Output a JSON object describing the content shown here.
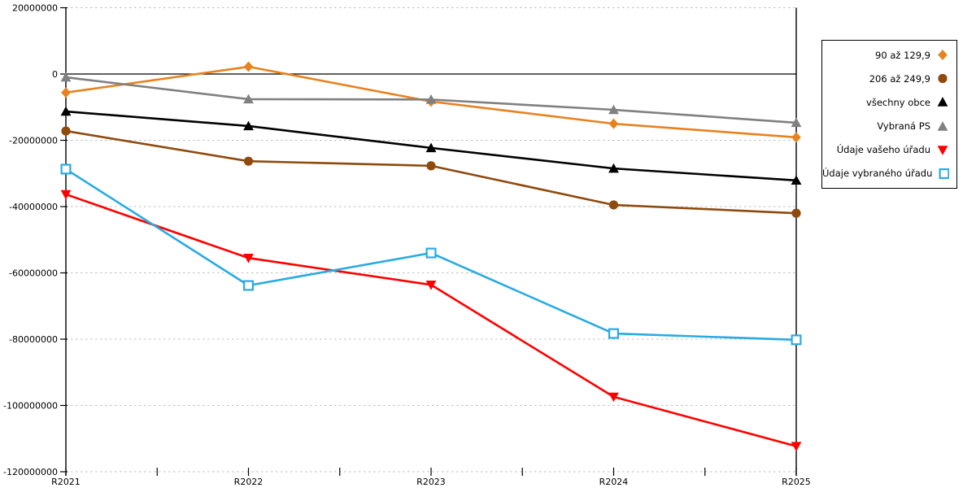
{
  "chart": {
    "background_color": "#ffffff",
    "axis_color": "#000000",
    "gridline_color": "#bfbfbf",
    "legend_border_color": "#000000"
  },
  "chart_data": {
    "type": "line",
    "categories": [
      "R2021",
      "R2022",
      "R2023",
      "R2024",
      "R2025"
    ],
    "series": [
      {
        "name": "90 až 129,9",
        "marker": "diamond",
        "color": "#E8821E",
        "values": [
          -5600000,
          2200000,
          -8300000,
          -15000000,
          -19100000
        ]
      },
      {
        "name": "206 až 249,9",
        "marker": "circle",
        "color": "#8F4A0D",
        "values": [
          -17200000,
          -26300000,
          -27700000,
          -39500000,
          -42000000
        ]
      },
      {
        "name": "všechny obce",
        "marker": "triangle-up",
        "color": "#000000",
        "values": [
          -11300000,
          -15700000,
          -22300000,
          -28500000,
          -32100000
        ]
      },
      {
        "name": "Vybraná PS",
        "marker": "triangle-up",
        "color": "#808080",
        "values": [
          -1000000,
          -7600000,
          -7700000,
          -10800000,
          -14700000
        ]
      },
      {
        "name": "Údaje vašeho úřadu",
        "marker": "triangle-down",
        "color": "#FF0000",
        "values": [
          -36300000,
          -55500000,
          -63600000,
          -97400000,
          -112300000
        ]
      },
      {
        "name": "Údaje vybraného úřadu",
        "marker": "square-open",
        "color": "#29ABE2",
        "values": [
          -28700000,
          -63800000,
          -54000000,
          -78300000,
          -80200000
        ]
      }
    ],
    "y_axis": {
      "max": 20000000,
      "min": -120000000,
      "step": 20000000,
      "tick_labels": [
        "20000000",
        "0",
        "-20000000",
        "-40000000",
        "-60000000",
        "-80000000",
        "-100000000",
        "-120000000"
      ]
    },
    "title": "",
    "xlabel": "",
    "ylabel": "",
    "grid": "horizontal-dashed",
    "zero_line": "solid-black",
    "legend_position": "top-right",
    "legend_marker_side": "right"
  }
}
